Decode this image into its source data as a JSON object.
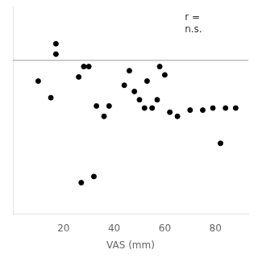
{
  "chart_data": {
    "type": "scatter",
    "x": [
      10,
      17,
      17,
      15,
      26,
      28,
      30,
      33,
      36,
      38,
      44,
      46,
      48,
      50,
      52,
      53,
      55,
      57,
      58,
      60,
      62,
      65,
      70,
      75,
      79,
      82,
      84,
      27,
      32,
      88
    ],
    "values": [
      6.2,
      7.1,
      6.85,
      5.8,
      6.3,
      6.55,
      6.55,
      5.6,
      5.35,
      5.6,
      6.1,
      6.45,
      5.95,
      5.75,
      5.55,
      6.2,
      5.55,
      5.75,
      6.55,
      6.35,
      5.45,
      5.35,
      5.5,
      5.5,
      5.55,
      4.7,
      5.55,
      3.75,
      3.9,
      5.55
    ],
    "color": "black",
    "xlabel": "VAS (mm)",
    "xlim": [
      0,
      93
    ],
    "xticks": [
      20,
      40,
      60,
      80
    ],
    "ylim": [
      3.0,
      8.0
    ],
    "tick_labels": "x",
    "grid": false,
    "annotations": [
      "r =\nn.s."
    ],
    "hlines": [
      {
        "y": 6.7,
        "color": "#999999"
      }
    ]
  }
}
